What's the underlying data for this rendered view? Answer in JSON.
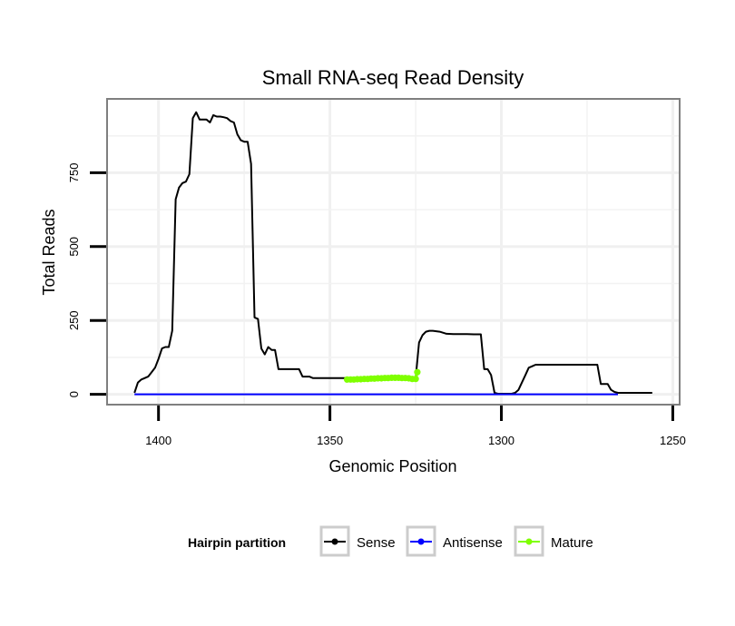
{
  "chart_data": {
    "type": "line",
    "title": "Small RNA-seq Read Density",
    "xlabel": "Genomic Position",
    "ylabel": "Total Reads",
    "xlim": [
      1415,
      1248
    ],
    "x_reversed": true,
    "ylim": [
      -35,
      1000
    ],
    "grid": true,
    "x_ticks": [
      1400,
      1350,
      1300,
      1250
    ],
    "x_tick_labels": [
      "1400",
      "1350",
      "1300",
      "1250"
    ],
    "y_ticks": [
      0,
      250,
      500,
      750
    ],
    "y_tick_labels": [
      "0",
      "250",
      "500",
      "750"
    ],
    "legend": {
      "title": "Hairpin partition",
      "position": "bottom",
      "entries": [
        "Sense",
        "Antisense",
        "Mature"
      ]
    },
    "series": [
      {
        "name": "Sense",
        "color": "#000000",
        "style": "line",
        "x": [
          1407,
          1406,
          1405,
          1404,
          1403,
          1402,
          1401,
          1400,
          1399,
          1398,
          1397,
          1396,
          1395,
          1394,
          1393,
          1392,
          1391,
          1390,
          1389,
          1388,
          1387,
          1386,
          1385,
          1384,
          1383,
          1382,
          1381,
          1380,
          1379,
          1378,
          1377,
          1376,
          1375,
          1374,
          1373,
          1372,
          1371,
          1370,
          1369,
          1368,
          1367,
          1366,
          1365,
          1364,
          1363,
          1362,
          1361,
          1360,
          1359,
          1358,
          1357,
          1356,
          1355,
          1354,
          1350,
          1345,
          1340,
          1335,
          1330,
          1326,
          1325,
          1324,
          1323,
          1322,
          1321,
          1320,
          1318,
          1316,
          1314,
          1312,
          1310,
          1308,
          1306,
          1305,
          1304,
          1303,
          1302,
          1301,
          1300,
          1298,
          1297,
          1296,
          1295,
          1294,
          1293,
          1292,
          1291,
          1290,
          1288,
          1285,
          1280,
          1275,
          1272,
          1271,
          1270,
          1269,
          1268,
          1267,
          1266,
          1265,
          1262,
          1258,
          1256
        ],
        "y": [
          5,
          40,
          50,
          55,
          60,
          75,
          90,
          120,
          155,
          160,
          160,
          215,
          660,
          700,
          715,
          720,
          745,
          935,
          955,
          930,
          930,
          930,
          920,
          945,
          940,
          940,
          938,
          935,
          925,
          920,
          880,
          860,
          855,
          855,
          780,
          260,
          255,
          155,
          135,
          160,
          150,
          150,
          85,
          85,
          85,
          85,
          85,
          85,
          85,
          60,
          60,
          60,
          55,
          55,
          55,
          55,
          55,
          55,
          55,
          55,
          55,
          175,
          200,
          212,
          215,
          215,
          212,
          205,
          204,
          204,
          204,
          203,
          203,
          85,
          85,
          65,
          5,
          2,
          2,
          2,
          2,
          5,
          15,
          40,
          65,
          90,
          95,
          100,
          100,
          100,
          100,
          100,
          100,
          35,
          35,
          35,
          15,
          8,
          5,
          5,
          5,
          5,
          5
        ]
      },
      {
        "name": "Antisense",
        "color": "#0000ff",
        "style": "line",
        "x": [
          1407,
          1266
        ],
        "y": [
          0,
          0
        ]
      },
      {
        "name": "Mature",
        "color": "#7fff00",
        "style": "points",
        "x": [
          1345,
          1344,
          1343,
          1342,
          1341,
          1340,
          1339,
          1338,
          1337,
          1336,
          1335,
          1334,
          1333,
          1332,
          1331,
          1330,
          1329,
          1328,
          1327,
          1326,
          1325,
          1324.5
        ],
        "y": [
          50,
          50,
          50,
          51,
          51,
          52,
          52,
          53,
          53,
          54,
          54,
          55,
          55,
          56,
          56,
          56,
          55,
          55,
          54,
          52,
          52,
          75
        ]
      }
    ]
  }
}
